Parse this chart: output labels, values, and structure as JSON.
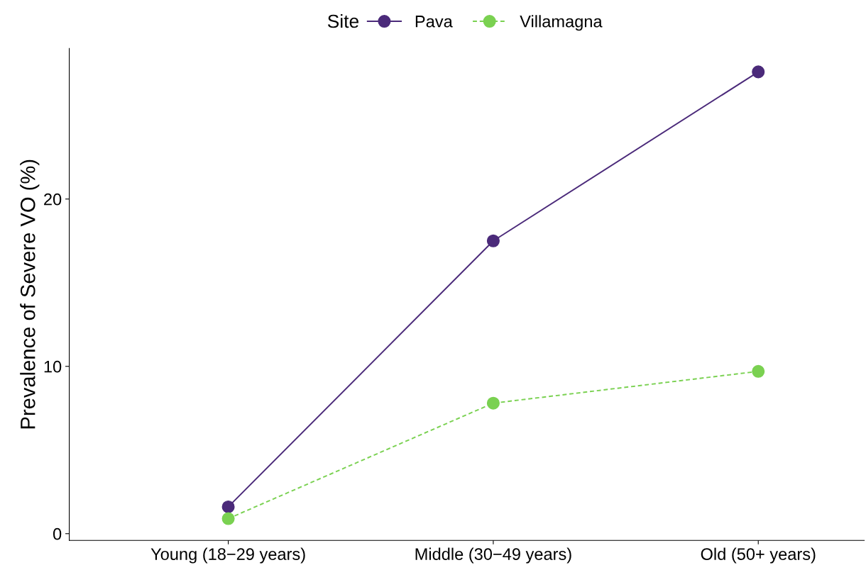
{
  "chart_data": {
    "type": "line",
    "ylabel": "Prevalence of Severe VO (%)",
    "legend_title": "Site",
    "categories": [
      "Young (18−29 years)",
      "Middle (30−49 years)",
      "Old (50+ years)"
    ],
    "series": [
      {
        "name": "Pava",
        "color": "#4b2a7a",
        "values": [
          1.6,
          17.5,
          27.6
        ],
        "line_style": "solid"
      },
      {
        "name": "Villamagna",
        "color": "#7ad151",
        "values": [
          0.9,
          7.8,
          9.7
        ],
        "line_style": "dashed"
      }
    ],
    "ylim": [
      -0.4,
      29.0
    ],
    "yticks": [
      0,
      10,
      20
    ],
    "marker": "circle",
    "legend": "top",
    "grid": false
  }
}
